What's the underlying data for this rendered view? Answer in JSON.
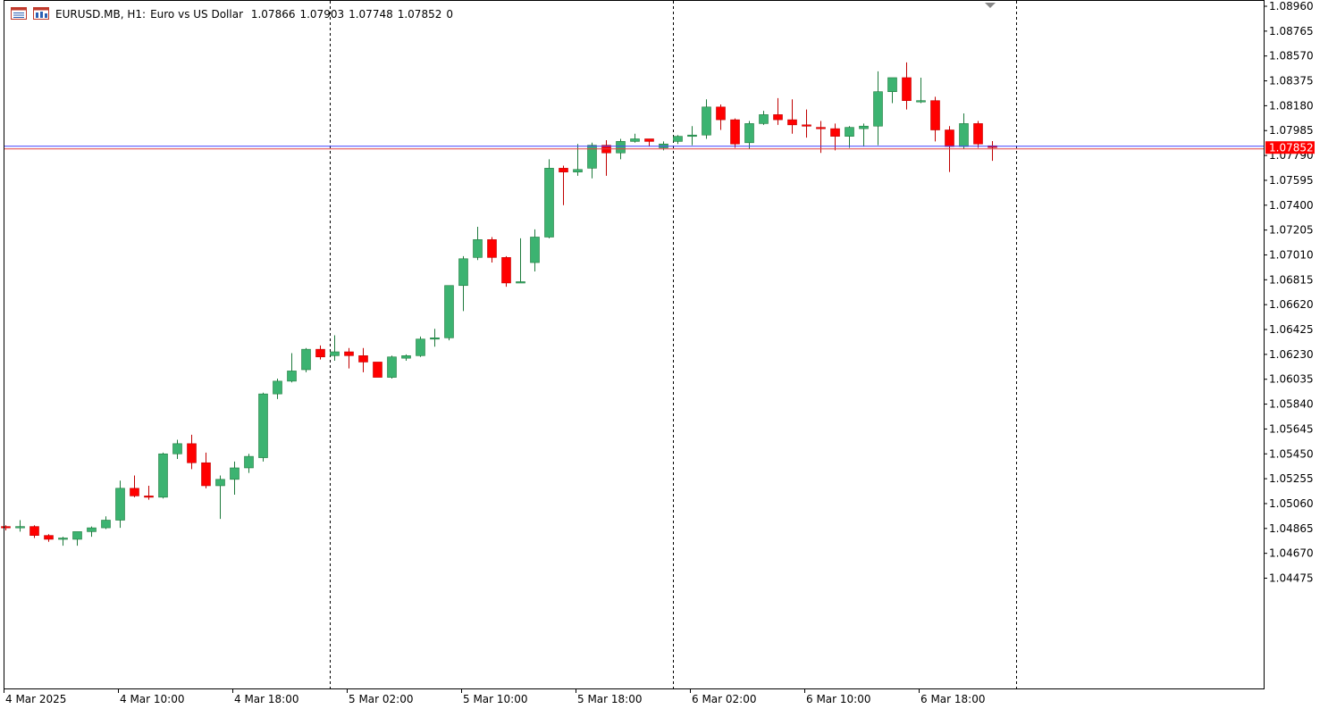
{
  "header": {
    "symbol": "EURUSD.MB, H1:",
    "description": "Euro vs US Dollar",
    "open": "1.07866",
    "high": "1.07903",
    "low": "1.07748",
    "close": "1.07852",
    "extra": "0",
    "icons": [
      "list-icon",
      "chart-window-icon"
    ]
  },
  "colors": {
    "bull": "#3cb371",
    "bear": "#ff0000",
    "wick_bull": "#1e7a3c",
    "wick_bear": "#c00000",
    "bid_line": "#4040ff",
    "ask_line": "#e04040",
    "price_tag": "#ff0000",
    "axis": "#000000",
    "separator": "#000000"
  },
  "current_price_label": "1.07852",
  "chart_data": {
    "type": "candlestick",
    "timeframe": "H1",
    "y_axis_side": "right",
    "ylim": [
      1.0438,
      1.0896
    ],
    "y_ticks": [
      "1.08960",
      "1.08765",
      "1.08570",
      "1.08375",
      "1.08180",
      "1.07985",
      "1.07790",
      "1.07595",
      "1.07400",
      "1.07205",
      "1.07010",
      "1.06815",
      "1.06620",
      "1.06425",
      "1.06230",
      "1.06035",
      "1.05840",
      "1.05645",
      "1.05450",
      "1.05255",
      "1.05060",
      "1.04865",
      "1.04670",
      "1.04475"
    ],
    "x_ticks": [
      {
        "label": "4 Mar 2025",
        "bar": 0
      },
      {
        "label": "4 Mar 10:00",
        "bar": 8
      },
      {
        "label": "4 Mar 18:00",
        "bar": 16
      },
      {
        "label": "5 Mar 02:00",
        "bar": 24
      },
      {
        "label": "5 Mar 10:00",
        "bar": 32
      },
      {
        "label": "5 Mar 18:00",
        "bar": 40
      },
      {
        "label": "6 Mar 02:00",
        "bar": 48
      },
      {
        "label": "6 Mar 10:00",
        "bar": 56
      },
      {
        "label": "6 Mar 18:00",
        "bar": 64
      }
    ],
    "day_separators": [
      22,
      46,
      70
    ],
    "grid": false,
    "current_price": 1.07852,
    "candles": [
      [
        1.0488,
        1.0489,
        1.0485,
        1.0487
      ],
      [
        1.0487,
        1.0493,
        1.0484,
        1.0488
      ],
      [
        1.0488,
        1.0489,
        1.0479,
        1.0481
      ],
      [
        1.0481,
        1.0482,
        1.0476,
        1.0478
      ],
      [
        1.0478,
        1.048,
        1.0473,
        1.0479
      ],
      [
        1.0478,
        1.0484,
        1.0473,
        1.0484
      ],
      [
        1.0484,
        1.0488,
        1.048,
        1.0487
      ],
      [
        1.0487,
        1.0496,
        1.0486,
        1.0493
      ],
      [
        1.0493,
        1.0524,
        1.0487,
        1.0518
      ],
      [
        1.0518,
        1.0528,
        1.0511,
        1.0512
      ],
      [
        1.0512,
        1.052,
        1.0509,
        1.0511
      ],
      [
        1.0511,
        1.0546,
        1.051,
        1.0545
      ],
      [
        1.0545,
        1.0556,
        1.0541,
        1.0553
      ],
      [
        1.0553,
        1.056,
        1.0533,
        1.0538
      ],
      [
        1.0538,
        1.0546,
        1.0518,
        1.052
      ],
      [
        1.052,
        1.0528,
        1.0494,
        1.0525
      ],
      [
        1.0525,
        1.0539,
        1.0513,
        1.0534
      ],
      [
        1.0534,
        1.0545,
        1.053,
        1.0543
      ],
      [
        1.0542,
        1.0593,
        1.0539,
        1.0592
      ],
      [
        1.0592,
        1.0604,
        1.0588,
        1.0602
      ],
      [
        1.0602,
        1.0624,
        1.0601,
        1.061
      ],
      [
        1.0611,
        1.0628,
        1.0609,
        1.0627
      ],
      [
        1.0627,
        1.063,
        1.0619,
        1.0621
      ],
      [
        1.0622,
        1.0638,
        1.0618,
        1.0625
      ],
      [
        1.0625,
        1.0628,
        1.0612,
        1.0622
      ],
      [
        1.0622,
        1.0628,
        1.0609,
        1.0617
      ],
      [
        1.0617,
        1.0617,
        1.0606,
        1.0605
      ],
      [
        1.0605,
        1.0622,
        1.0604,
        1.0621
      ],
      [
        1.062,
        1.0623,
        1.0618,
        1.0622
      ],
      [
        1.0622,
        1.0637,
        1.0621,
        1.0635
      ],
      [
        1.0635,
        1.0643,
        1.0629,
        1.0636
      ],
      [
        1.0636,
        1.0677,
        1.0634,
        1.0677
      ],
      [
        1.0677,
        1.07,
        1.0657,
        1.0698
      ],
      [
        1.0699,
        1.0723,
        1.0697,
        1.0713
      ],
      [
        1.0713,
        1.0715,
        1.0695,
        1.0699
      ],
      [
        1.0699,
        1.07,
        1.0676,
        1.0679
      ],
      [
        1.068,
        1.0714,
        1.0679,
        1.068
      ],
      [
        1.0695,
        1.0721,
        1.0688,
        1.0715
      ],
      [
        1.0715,
        1.0776,
        1.0714,
        1.0769
      ],
      [
        1.0769,
        1.0771,
        1.074,
        1.0766
      ],
      [
        1.0766,
        1.0788,
        1.0763,
        1.0768
      ],
      [
        1.0769,
        1.0789,
        1.0761,
        1.0787
      ],
      [
        1.0787,
        1.0791,
        1.0763,
        1.0781
      ],
      [
        1.0781,
        1.0792,
        1.0776,
        1.079
      ],
      [
        1.079,
        1.0796,
        1.0789,
        1.0792
      ],
      [
        1.0792,
        1.0792,
        1.0786,
        1.079
      ],
      [
        1.0785,
        1.079,
        1.0783,
        1.0788
      ],
      [
        1.079,
        1.0795,
        1.0788,
        1.0794
      ],
      [
        1.0794,
        1.0802,
        1.0787,
        1.0795
      ],
      [
        1.0795,
        1.0823,
        1.0792,
        1.0817
      ],
      [
        1.0817,
        1.0819,
        1.0799,
        1.0807
      ],
      [
        1.0807,
        1.0808,
        1.0785,
        1.0788
      ],
      [
        1.0789,
        1.0806,
        1.0784,
        1.0804
      ],
      [
        1.0804,
        1.0814,
        1.0803,
        1.0811
      ],
      [
        1.0811,
        1.0824,
        1.0803,
        1.0807
      ],
      [
        1.0807,
        1.0823,
        1.0796,
        1.0803
      ],
      [
        1.0803,
        1.0815,
        1.0793,
        1.0802
      ],
      [
        1.0801,
        1.0806,
        1.0781,
        1.08
      ],
      [
        1.08,
        1.0804,
        1.0783,
        1.0794
      ],
      [
        1.0794,
        1.0802,
        1.0785,
        1.0801
      ],
      [
        1.08,
        1.0804,
        1.0786,
        1.0802
      ],
      [
        1.0802,
        1.0845,
        1.0787,
        1.0829
      ],
      [
        1.0829,
        1.084,
        1.082,
        1.084
      ],
      [
        1.084,
        1.0852,
        1.0815,
        1.0822
      ],
      [
        1.0821,
        1.084,
        1.082,
        1.0822
      ],
      [
        1.0822,
        1.0825,
        1.079,
        1.0799
      ],
      [
        1.0799,
        1.0802,
        1.0766,
        1.0786
      ],
      [
        1.0786,
        1.0812,
        1.0784,
        1.0804
      ],
      [
        1.0804,
        1.0806,
        1.0785,
        1.0788
      ],
      [
        1.07866,
        1.07903,
        1.07748,
        1.07852
      ]
    ]
  }
}
